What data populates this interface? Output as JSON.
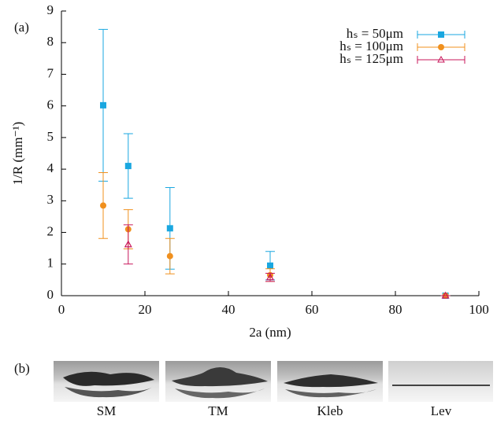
{
  "chart_data": {
    "type": "scatter",
    "panel_label": "(a)",
    "xlabel": "2a (nm)",
    "ylabel": "1/R (mm⁻¹)",
    "xlim": [
      0,
      100
    ],
    "xticks": [
      0,
      20,
      40,
      60,
      80,
      100
    ],
    "ylim": [
      0,
      9
    ],
    "yticks": [
      0,
      1,
      2,
      3,
      4,
      5,
      6,
      7,
      8,
      9
    ],
    "legend": "upper right",
    "series": [
      {
        "name": "hₛ = 50μm",
        "color": "#1aa7e0",
        "marker": "square",
        "x": [
          10,
          16,
          26,
          50,
          92
        ],
        "values": [
          6.02,
          4.1,
          2.13,
          0.95,
          0
        ],
        "errors": [
          2.4,
          1.02,
          1.29,
          0.45,
          0
        ]
      },
      {
        "name": "hₛ = 100μm",
        "color": "#f0901e",
        "marker": "circle",
        "x": [
          10,
          16,
          26,
          50,
          92
        ],
        "values": [
          2.85,
          2.1,
          1.25,
          0.65,
          0
        ],
        "errors": [
          1.04,
          0.62,
          0.56,
          0.2,
          0
        ]
      },
      {
        "name": "hₛ = 125μm",
        "color": "#c8175b",
        "marker": "triangle",
        "x": [
          16,
          50,
          92
        ],
        "values": [
          1.62,
          0.58,
          0
        ],
        "errors": [
          0.62,
          0.13,
          0
        ]
      }
    ]
  },
  "panel_b": {
    "label": "(b)",
    "captions": [
      "SM",
      "TM",
      "Kleb",
      "Lev"
    ]
  }
}
